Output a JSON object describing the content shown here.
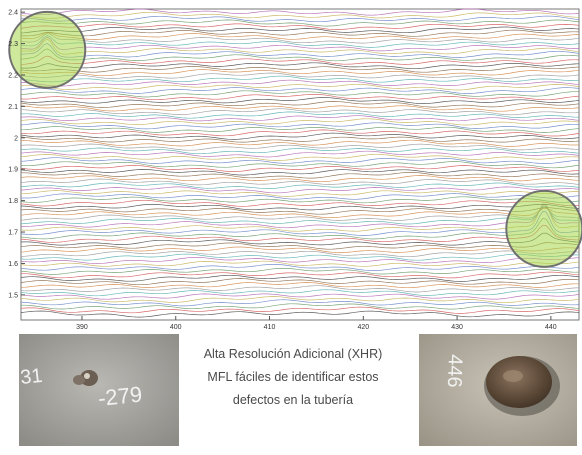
{
  "chart_data": {
    "type": "line",
    "title": "",
    "xlabel": "",
    "ylabel": "",
    "xlim": [
      383.5,
      443
    ],
    "ylim": [
      1.42,
      2.41
    ],
    "x_ticks": [
      390,
      400,
      410,
      420,
      430,
      440
    ],
    "y_ticks": [
      1.5,
      1.6,
      1.7,
      1.8,
      1.9,
      2.0,
      2.1,
      2.2,
      2.3,
      2.4
    ],
    "x_tick_labels": [
      "390",
      "400",
      "410",
      "420",
      "430",
      "440"
    ],
    "y_tick_labels": [
      "1.5",
      "1.6",
      "1.7",
      "1.8",
      "1.9",
      "2",
      "2.1",
      "2.2",
      "2.3",
      "2.4"
    ],
    "grid": false,
    "legend": "none",
    "series_count": 86,
    "series_baseline_range": [
      1.44,
      2.4
    ],
    "series_colors": [
      "#4a4a4a",
      "#d45a5a",
      "#6a9a6a",
      "#6a86c8",
      "#c7b35a",
      "#b46ab4",
      "#5ab0b0",
      "#9a9a9a",
      "#d48a4a",
      "#8a6a4a"
    ],
    "highlights": [
      {
        "name": "defect-1",
        "x": 386.3,
        "y": 2.28,
        "peak_height": 0.05,
        "color": "#a6d64a"
      },
      {
        "name": "defect-2",
        "x": 439.3,
        "y": 1.71,
        "peak_height": 0.08,
        "color": "#a6d64a"
      }
    ]
  },
  "caption": {
    "line1": "Alta Resolución Adicional (XHR)",
    "line2": "MFL fáciles de identificar estos",
    "line3": "defectos en la tubería"
  },
  "photos": {
    "left": {
      "marking_prefix": "31",
      "marking_suffix": "-279"
    },
    "right": {
      "marking": "446"
    }
  }
}
